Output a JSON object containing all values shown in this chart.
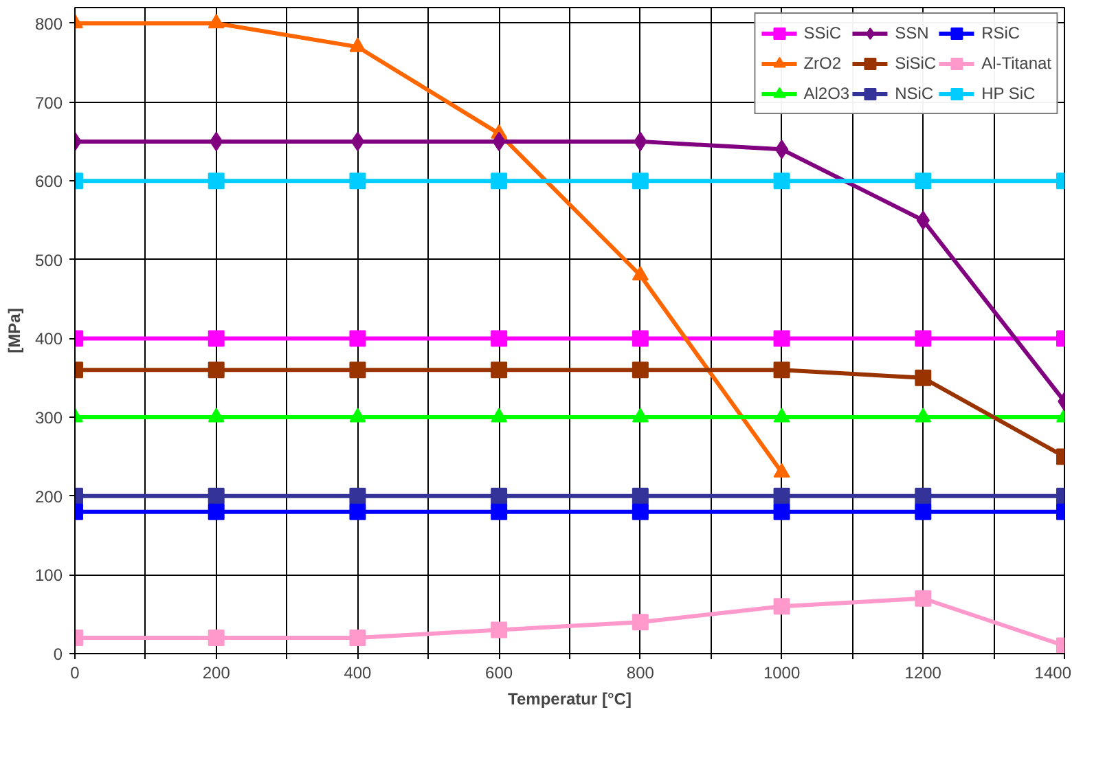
{
  "chart_data": {
    "type": "line",
    "xlabel": "Temperatur [°C]",
    "ylabel": "[MPa]",
    "x": [
      0,
      200,
      400,
      600,
      800,
      1000,
      1200,
      1400
    ],
    "xlim": [
      0,
      1400
    ],
    "ylim": [
      0,
      820
    ],
    "xticks": [
      0,
      {
        "value": 100,
        "label": null
      },
      200,
      {
        "value": 300,
        "label": null
      },
      400,
      {
        "value": 500,
        "label": null
      },
      600,
      {
        "value": 700,
        "label": null
      },
      800,
      {
        "value": 900,
        "label": null
      },
      1000,
      {
        "value": 1100,
        "label": null
      },
      1200,
      {
        "value": 1300,
        "label": null
      },
      1400
    ],
    "yticks": [
      0,
      100,
      200,
      300,
      400,
      500,
      600,
      700,
      800
    ],
    "grid": true,
    "legend": "top right",
    "line_style": "solid",
    "series": [
      {
        "name": "SSiC",
        "color": "#ff00ff",
        "marker": "square",
        "values": [
          400,
          400,
          400,
          400,
          400,
          400,
          400,
          400
        ]
      },
      {
        "name": "ZrO2",
        "color": "#ff6600",
        "marker": "triangle",
        "values": [
          800,
          800,
          770,
          660,
          480,
          230,
          null,
          null
        ]
      },
      {
        "name": "Al2O3",
        "color": "#00ff00",
        "marker": "triangle",
        "values": [
          300,
          300,
          300,
          300,
          300,
          300,
          300,
          300
        ]
      },
      {
        "name": "SSN",
        "color": "#800080",
        "marker": "diamond",
        "values": [
          650,
          650,
          650,
          650,
          650,
          640,
          550,
          320
        ]
      },
      {
        "name": "SiSiC",
        "color": "#993300",
        "marker": "square",
        "values": [
          360,
          360,
          360,
          360,
          360,
          360,
          350,
          250
        ]
      },
      {
        "name": "NSiC",
        "color": "#333399",
        "marker": "square",
        "values": [
          200,
          200,
          200,
          200,
          200,
          200,
          200,
          200
        ]
      },
      {
        "name": "RSiC",
        "color": "#0000ff",
        "marker": "square",
        "values": [
          180,
          180,
          180,
          180,
          180,
          180,
          180,
          180
        ]
      },
      {
        "name": "Al-Titanat",
        "color": "#ff99cc",
        "marker": "square",
        "values": [
          20,
          20,
          20,
          30,
          40,
          60,
          70,
          10
        ]
      },
      {
        "name": "HP SiC",
        "color": "#00ccff",
        "marker": "square",
        "values": [
          600,
          600,
          600,
          600,
          600,
          600,
          600,
          600
        ]
      }
    ]
  }
}
